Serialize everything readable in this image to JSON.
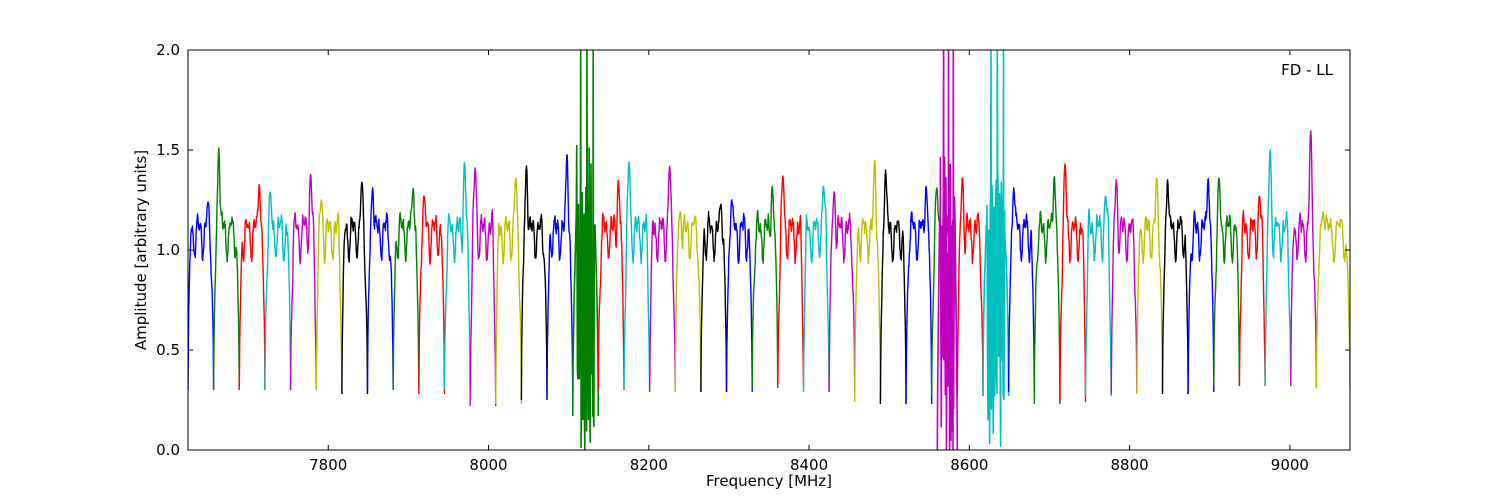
{
  "chart_data": {
    "type": "line",
    "title": "",
    "annotation": "FD - LL",
    "xlabel": "Frequency [MHz]",
    "ylabel": "Amplitude [arbitrary units]",
    "xlim": [
      7625,
      9075
    ],
    "ylim": [
      0,
      2.0
    ],
    "xticks": [
      7800,
      8000,
      8200,
      8400,
      8600,
      8800,
      9000
    ],
    "yticks": [
      0.0,
      0.5,
      1.0,
      1.5,
      2.0
    ],
    "xtick_labels": [
      "7800",
      "8000",
      "8200",
      "8400",
      "8600",
      "8800",
      "9000"
    ],
    "ytick_labels": [
      "0.0",
      "0.5",
      "1.0",
      "1.5",
      "2.0"
    ],
    "grid": false,
    "color_cycle": [
      "#0000ff",
      "#008000",
      "#ff0000",
      "#00bfbf",
      "#bf00bf",
      "#bfbf00",
      "#000000"
    ],
    "channel_width_mhz": 32,
    "series": [
      {
        "color": "#0000ff",
        "x_start": 7625,
        "x_end": 7657,
        "peak": 1.24,
        "edge_low": 0.3
      },
      {
        "color": "#008000",
        "x_start": 7657,
        "x_end": 7689,
        "peak": 1.51,
        "edge_low": 0.3
      },
      {
        "color": "#ff0000",
        "x_start": 7689,
        "x_end": 7721,
        "peak": 1.33,
        "edge_low": 0.3
      },
      {
        "color": "#00bfbf",
        "x_start": 7721,
        "x_end": 7753,
        "peak": 1.29,
        "edge_low": 0.3
      },
      {
        "color": "#bf00bf",
        "x_start": 7753,
        "x_end": 7785,
        "peak": 1.38,
        "edge_low": 0.3
      },
      {
        "color": "#bfbf00",
        "x_start": 7785,
        "x_end": 7817,
        "peak": 1.25,
        "edge_low": 0.3
      },
      {
        "color": "#000000",
        "x_start": 7817,
        "x_end": 7849,
        "peak": 1.34,
        "edge_low": 0.28
      },
      {
        "color": "#0000ff",
        "x_start": 7849,
        "x_end": 7881,
        "peak": 1.31,
        "edge_low": 0.3
      },
      {
        "color": "#008000",
        "x_start": 7881,
        "x_end": 7913,
        "peak": 1.31,
        "edge_low": 0.3
      },
      {
        "color": "#ff0000",
        "x_start": 7913,
        "x_end": 7945,
        "peak": 1.27,
        "edge_low": 0.28
      },
      {
        "color": "#00bfbf",
        "x_start": 7945,
        "x_end": 7977,
        "peak": 1.44,
        "edge_low": 0.3
      },
      {
        "color": "#bf00bf",
        "x_start": 7977,
        "x_end": 8009,
        "peak": 1.41,
        "edge_low": 0.22
      },
      {
        "color": "#bfbf00",
        "x_start": 8009,
        "x_end": 8041,
        "peak": 1.36,
        "edge_low": 0.23
      },
      {
        "color": "#000000",
        "x_start": 8041,
        "x_end": 8073,
        "peak": 1.42,
        "edge_low": 0.25
      },
      {
        "color": "#0000ff",
        "x_start": 8073,
        "x_end": 8105,
        "peak": 1.48,
        "edge_low": 0.27
      },
      {
        "color": "#008000",
        "x_start": 8105,
        "x_end": 8137,
        "peak": 2.0,
        "edge_low": 0.17
      },
      {
        "color": "#ff0000",
        "x_start": 8137,
        "x_end": 8169,
        "peak": 1.35,
        "edge_low": 0.3
      },
      {
        "color": "#00bfbf",
        "x_start": 8169,
        "x_end": 8201,
        "peak": 1.44,
        "edge_low": 0.3
      },
      {
        "color": "#bf00bf",
        "x_start": 8201,
        "x_end": 8233,
        "peak": 1.42,
        "edge_low": 0.29
      },
      {
        "color": "#bfbf00",
        "x_start": 8233,
        "x_end": 8265,
        "peak": 1.19,
        "edge_low": 0.29
      },
      {
        "color": "#000000",
        "x_start": 8265,
        "x_end": 8297,
        "peak": 1.23,
        "edge_low": 0.29
      },
      {
        "color": "#0000ff",
        "x_start": 8297,
        "x_end": 8329,
        "peak": 1.25,
        "edge_low": 0.29
      },
      {
        "color": "#008000",
        "x_start": 8329,
        "x_end": 8361,
        "peak": 1.32,
        "edge_low": 0.31
      },
      {
        "color": "#ff0000",
        "x_start": 8361,
        "x_end": 8393,
        "peak": 1.37,
        "edge_low": 0.32
      },
      {
        "color": "#00bfbf",
        "x_start": 8393,
        "x_end": 8425,
        "peak": 1.32,
        "edge_low": 0.29
      },
      {
        "color": "#bf00bf",
        "x_start": 8425,
        "x_end": 8457,
        "peak": 1.29,
        "edge_low": 0.29
      },
      {
        "color": "#bfbf00",
        "x_start": 8457,
        "x_end": 8489,
        "peak": 1.45,
        "edge_low": 0.24
      },
      {
        "color": "#000000",
        "x_start": 8489,
        "x_end": 8521,
        "peak": 1.4,
        "edge_low": 0.23
      },
      {
        "color": "#0000ff",
        "x_start": 8521,
        "x_end": 8553,
        "peak": 1.32,
        "edge_low": 0.23
      },
      {
        "color": "#008000",
        "x_start": 8553,
        "x_end": 8585,
        "peak": 1.31,
        "edge_low": 0.27
      },
      {
        "color": "#bf00bf",
        "x_start": 8560,
        "x_end": 8585,
        "peak": 2.0,
        "edge_low": 0.0
      },
      {
        "color": "#ff0000",
        "x_start": 8585,
        "x_end": 8617,
        "peak": 1.36,
        "edge_low": 0.27
      },
      {
        "color": "#00bfbf",
        "x_start": 8617,
        "x_end": 8649,
        "peak": 2.0,
        "edge_low": 0.27
      },
      {
        "color": "#0000ff",
        "x_start": 8649,
        "x_end": 8681,
        "peak": 1.31,
        "edge_low": 0.29
      },
      {
        "color": "#008000",
        "x_start": 8681,
        "x_end": 8713,
        "peak": 1.37,
        "edge_low": 0.23
      },
      {
        "color": "#ff0000",
        "x_start": 8713,
        "x_end": 8745,
        "peak": 1.43,
        "edge_low": 0.24
      },
      {
        "color": "#00bfbf",
        "x_start": 8745,
        "x_end": 8777,
        "peak": 1.27,
        "edge_low": 0.27
      },
      {
        "color": "#bf00bf",
        "x_start": 8777,
        "x_end": 8809,
        "peak": 1.35,
        "edge_low": 0.28
      },
      {
        "color": "#bfbf00",
        "x_start": 8809,
        "x_end": 8841,
        "peak": 1.36,
        "edge_low": 0.28
      },
      {
        "color": "#000000",
        "x_start": 8841,
        "x_end": 8873,
        "peak": 1.35,
        "edge_low": 0.28
      },
      {
        "color": "#0000ff",
        "x_start": 8873,
        "x_end": 8905,
        "peak": 1.36,
        "edge_low": 0.29
      },
      {
        "color": "#008000",
        "x_start": 8905,
        "x_end": 8937,
        "peak": 1.36,
        "edge_low": 0.32
      },
      {
        "color": "#ff0000",
        "x_start": 8937,
        "x_end": 8969,
        "peak": 1.27,
        "edge_low": 0.32
      },
      {
        "color": "#00bfbf",
        "x_start": 8969,
        "x_end": 9001,
        "peak": 1.5,
        "edge_low": 0.32
      },
      {
        "color": "#bf00bf",
        "x_start": 9001,
        "x_end": 9033,
        "peak": 1.61,
        "edge_low": 0.32
      },
      {
        "color": "#bfbf00",
        "x_start": 9033,
        "x_end": 9075,
        "peak": 1.19,
        "edge_low": 0.31
      }
    ]
  }
}
